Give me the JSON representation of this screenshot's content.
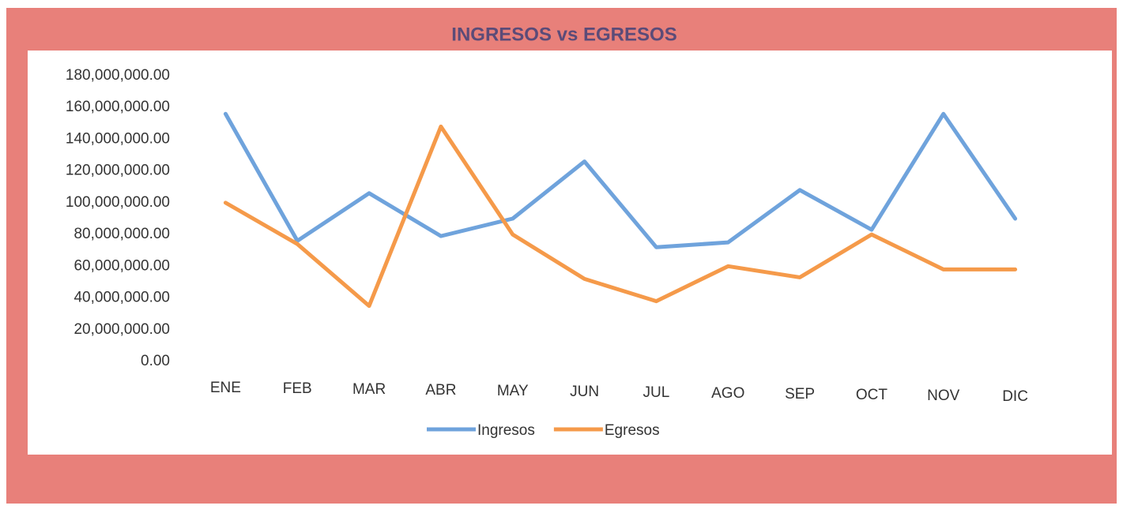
{
  "chart_data": {
    "type": "line",
    "title": "INGRESOS vs EGRESOS",
    "categories": [
      "ENE",
      "FEB",
      "MAR",
      "ABR",
      "MAY",
      "JUN",
      "JUL",
      "AGO",
      "SEP",
      "OCT",
      "NOV",
      "DIC"
    ],
    "series": [
      {
        "name": "Ingresos",
        "color": "#6fa3dc",
        "values": [
          156000000,
          76000000,
          106000000,
          79000000,
          90000000,
          126000000,
          72000000,
          75000000,
          108000000,
          83000000,
          156000000,
          90000000
        ]
      },
      {
        "name": "Egresos",
        "color": "#f59a4a",
        "values": [
          100000000,
          74000000,
          35000000,
          148000000,
          80000000,
          52000000,
          38000000,
          60000000,
          53000000,
          80000000,
          58000000,
          58000000
        ]
      }
    ],
    "ylim": [
      0,
      180000000
    ],
    "yticks": [
      {
        "value": 0,
        "label": "0.00"
      },
      {
        "value": 20000000,
        "label": "20,000,000.00"
      },
      {
        "value": 40000000,
        "label": "40,000,000.00"
      },
      {
        "value": 60000000,
        "label": "60,000,000.00"
      },
      {
        "value": 80000000,
        "label": "80,000,000.00"
      },
      {
        "value": 100000000,
        "label": "100,000,000.00"
      },
      {
        "value": 120000000,
        "label": "120,000,000.00"
      },
      {
        "value": 140000000,
        "label": "140,000,000.00"
      },
      {
        "value": 160000000,
        "label": "160,000,000.00"
      },
      {
        "value": 180000000,
        "label": "180,000,000.00"
      }
    ],
    "grid": false,
    "legend": "bottom"
  }
}
